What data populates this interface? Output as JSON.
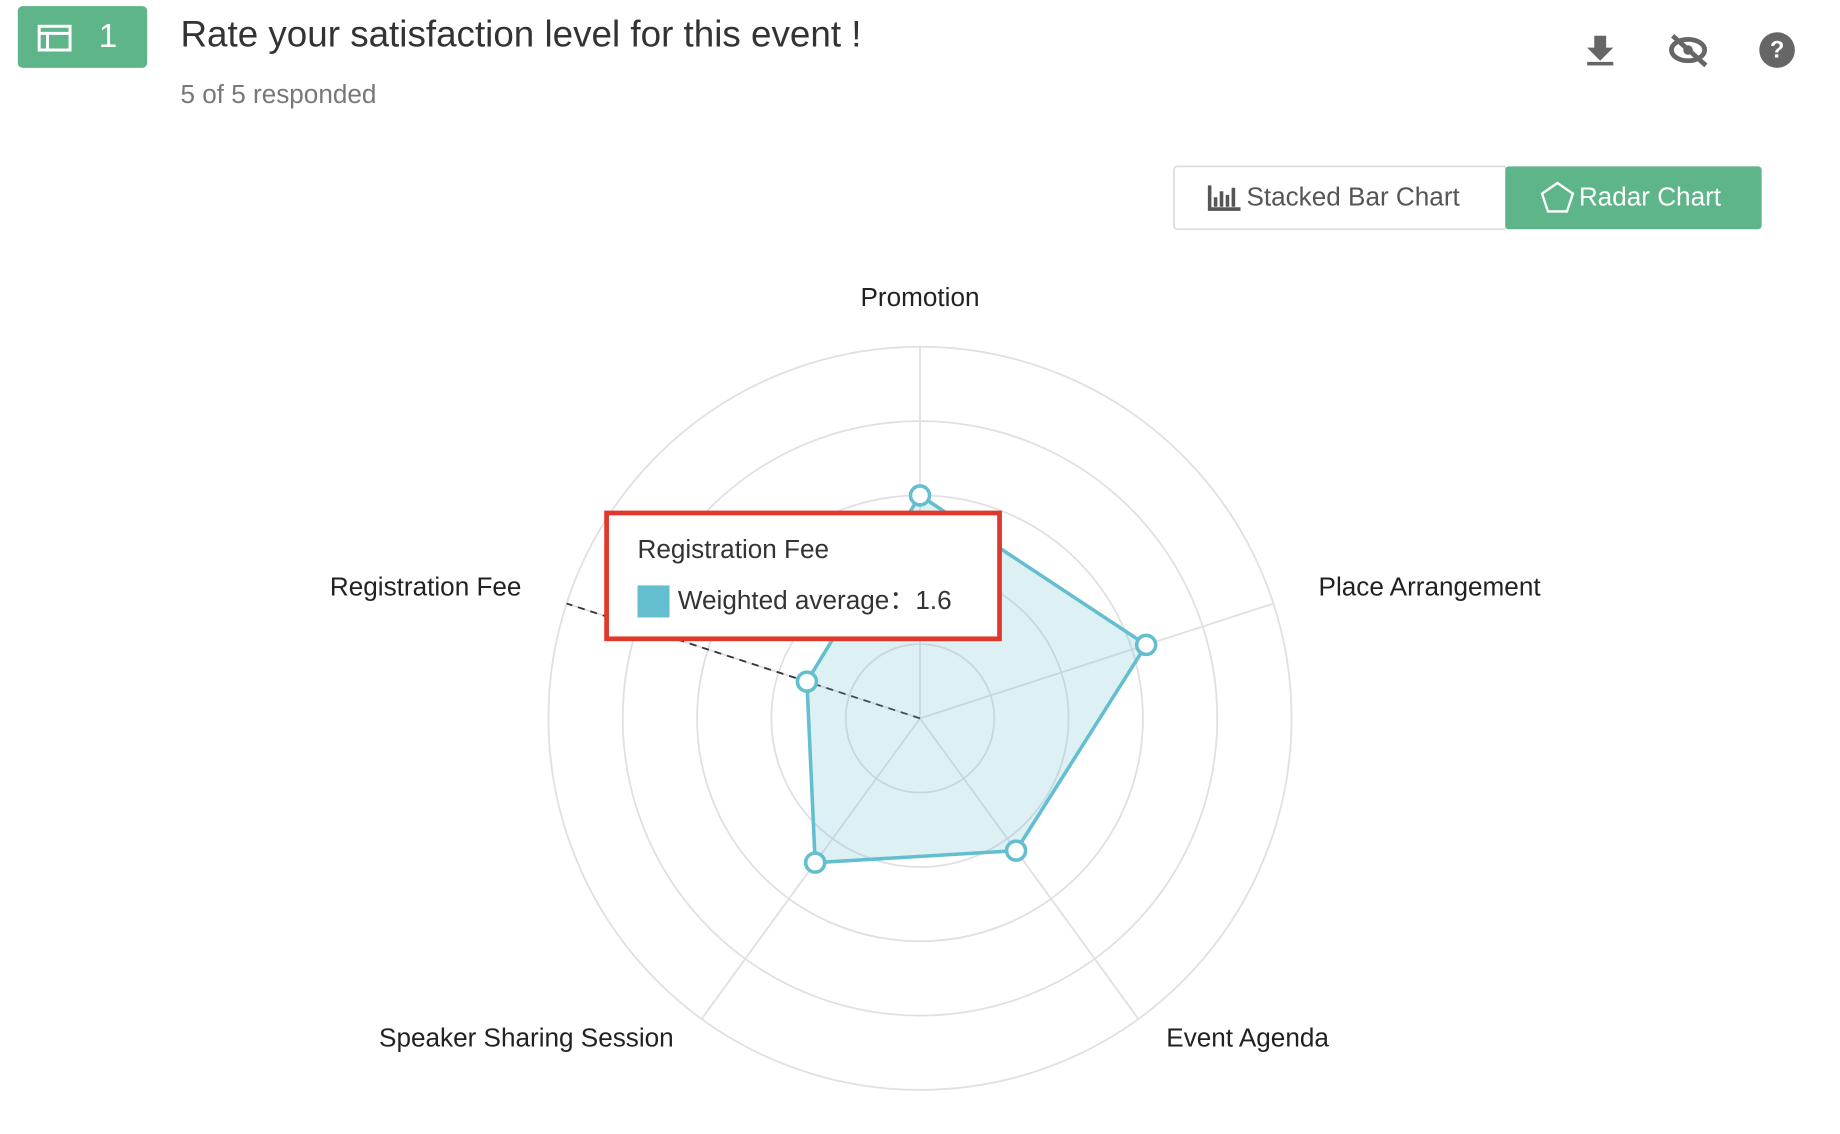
{
  "header": {
    "number": "1",
    "title": "Rate your satisfaction level for this event !",
    "responded": "5 of 5 responded"
  },
  "view_toggle": {
    "options": [
      "Stacked Bar Chart",
      "Radar Chart"
    ],
    "active": 1
  },
  "chart_data": {
    "type": "radar",
    "categories": [
      "Promotion",
      "Place Arrangement",
      "Event Agenda",
      "Speaker Sharing Session",
      "Registration Fee"
    ],
    "series": [
      {
        "name": "Weighted average",
        "color": "#63bfcf",
        "values": [
          3.0,
          3.2,
          2.2,
          2.4,
          1.6
        ]
      }
    ],
    "rlim": [
      0,
      5
    ],
    "rticks": [
      1,
      2,
      3,
      4,
      5
    ],
    "grid": true,
    "tooltip": {
      "category": "Registration Fee",
      "separator": "："
    }
  }
}
